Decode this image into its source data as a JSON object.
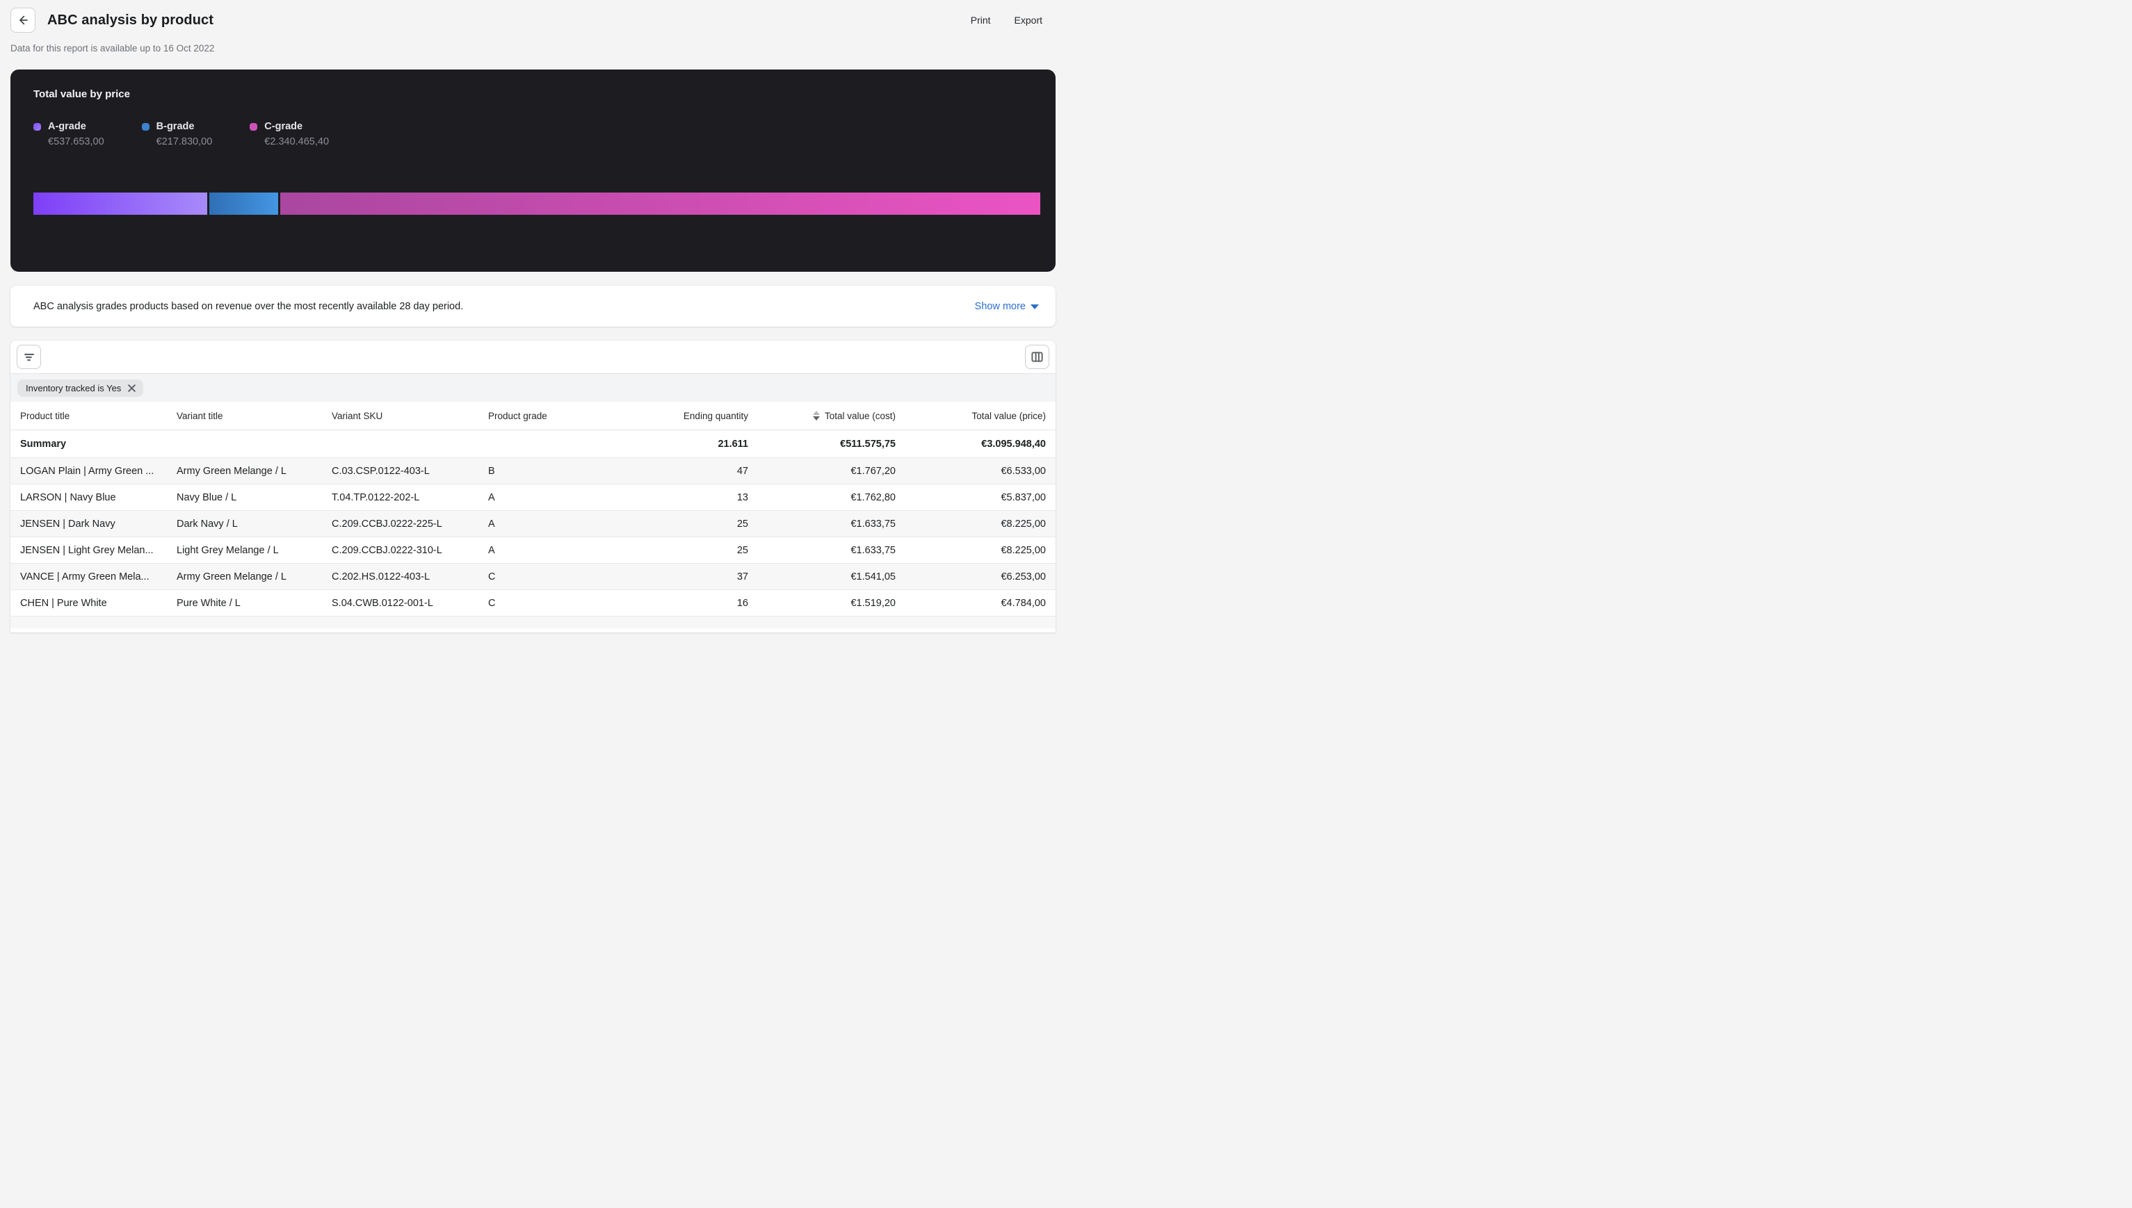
{
  "header": {
    "title": "ABC analysis by product",
    "subtitle": "Data for this report is available up to 16 Oct 2022",
    "print_label": "Print",
    "export_label": "Export"
  },
  "chart_card": {
    "title": "Total value by price",
    "legend": [
      {
        "label": "A-grade",
        "value": "€537.653,00",
        "dot_from": "#8250f8",
        "dot_to": "#9d7dfa"
      },
      {
        "label": "B-grade",
        "value": "€217.830,00",
        "dot_from": "#3b82cf",
        "dot_to": "#3b82cf"
      },
      {
        "label": "C-grade",
        "value": "€2.340.465,40",
        "dot_from": "#cf52bb",
        "dot_to": "#cf52bb"
      }
    ],
    "bar_segments": [
      {
        "grade": "A-grade",
        "percent": 17.37,
        "from": "#7e3ff7",
        "to": "#a78bfa"
      },
      {
        "grade": "B-grade",
        "percent": 7.04,
        "from": "#2f6fb5",
        "to": "#4496e3"
      },
      {
        "grade": "C-grade",
        "percent": 75.59,
        "from": "#aa47a0",
        "to": "#ea54c2"
      }
    ]
  },
  "chart_data": {
    "type": "bar",
    "title": "Total value by price",
    "categories": [
      "A-grade",
      "B-grade",
      "C-grade"
    ],
    "values": [
      537653.0,
      217830.0,
      2340465.4
    ],
    "value_labels": [
      "€537.653,00",
      "€217.830,00",
      "€2.340.465,40"
    ],
    "layout": "single horizontal stacked proportion bar",
    "legend_position": "top-left",
    "colors": [
      "#8b5cf6",
      "#3b82cf",
      "#cf52bb"
    ]
  },
  "description": {
    "text": "ABC analysis grades products based on revenue over the most recently available 28 day period.",
    "show_more_label": "Show more"
  },
  "table": {
    "filter_chip": "Inventory tracked is Yes",
    "columns": [
      "Product title",
      "Variant title",
      "Variant SKU",
      "Product grade",
      "Ending quantity",
      "Total value (cost)",
      "Total value (price)"
    ],
    "sorted_column": "Total value (cost)",
    "summary": {
      "label": "Summary",
      "ending_quantity": "21.611",
      "total_value_cost": "€511.575,75",
      "total_value_price": "€3.095.948,40"
    },
    "rows": [
      {
        "product_title": "LOGAN Plain | Army Green ...",
        "variant_title": "Army Green Melange / L",
        "variant_sku": "C.03.CSP.0122-403-L",
        "grade": "B",
        "ending_quantity": "47",
        "total_value_cost": "€1.767,20",
        "total_value_price": "€6.533,00"
      },
      {
        "product_title": "LARSON | Navy Blue",
        "variant_title": "Navy Blue / L",
        "variant_sku": "T.04.TP.0122-202-L",
        "grade": "A",
        "ending_quantity": "13",
        "total_value_cost": "€1.762,80",
        "total_value_price": "€5.837,00"
      },
      {
        "product_title": "JENSEN | Dark Navy",
        "variant_title": "Dark Navy / L",
        "variant_sku": "C.209.CCBJ.0222-225-L",
        "grade": "A",
        "ending_quantity": "25",
        "total_value_cost": "€1.633,75",
        "total_value_price": "€8.225,00"
      },
      {
        "product_title": "JENSEN | Light Grey Melan...",
        "variant_title": "Light Grey Melange / L",
        "variant_sku": "C.209.CCBJ.0222-310-L",
        "grade": "A",
        "ending_quantity": "25",
        "total_value_cost": "€1.633,75",
        "total_value_price": "€8.225,00"
      },
      {
        "product_title": "VANCE | Army Green Mela...",
        "variant_title": "Army Green Melange / L",
        "variant_sku": "C.202.HS.0122-403-L",
        "grade": "C",
        "ending_quantity": "37",
        "total_value_cost": "€1.541,05",
        "total_value_price": "€6.253,00"
      },
      {
        "product_title": "CHEN | Pure White",
        "variant_title": "Pure White / L",
        "variant_sku": "S.04.CWB.0122-001-L",
        "grade": "C",
        "ending_quantity": "16",
        "total_value_cost": "€1.519,20",
        "total_value_price": "€4.784,00"
      }
    ]
  }
}
